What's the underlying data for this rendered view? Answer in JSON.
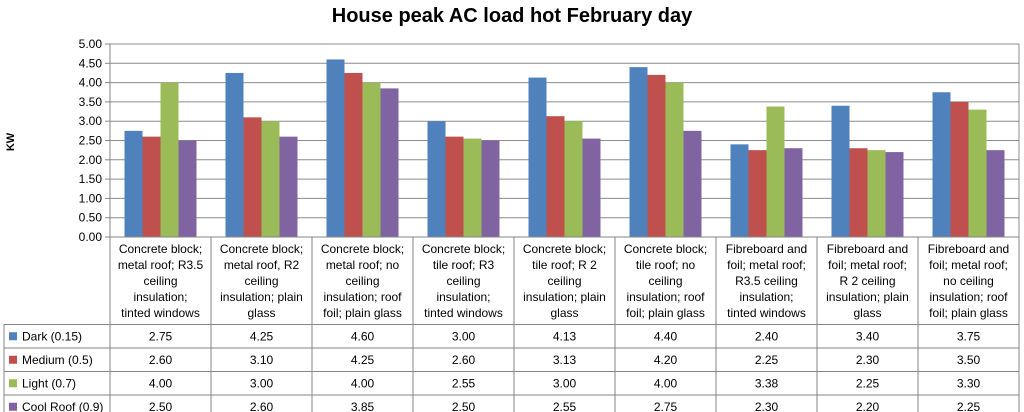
{
  "chart_data": {
    "type": "bar",
    "title": "House peak AC load hot February day",
    "ylabel": "KW",
    "xlabel": "",
    "ylim": [
      0,
      5
    ],
    "ytick_step": 0.5,
    "grid": true,
    "legend": "data-table",
    "categories": [
      [
        "Concrete block;",
        "metal roof; R3.5",
        "ceiling",
        "insulation;",
        "tinted windows"
      ],
      [
        "Concrete block;",
        "metal roof, R2",
        "ceiling",
        "insulation; plain",
        "glass"
      ],
      [
        "Concrete block;",
        "metal roof; no",
        "ceiling",
        "insulation; roof",
        "foil; plain glass"
      ],
      [
        "Concrete block;",
        "tile roof; R3",
        "ceiling",
        "insulation;",
        "tinted windows"
      ],
      [
        "Concrete block;",
        "tile roof; R 2",
        "ceiling",
        "insulation; plain",
        "glass"
      ],
      [
        "Concrete block;",
        "tile roof; no",
        "ceiling",
        "insulation; roof",
        "foil; plain glass"
      ],
      [
        "Fibreboard and",
        "foil; metal roof;",
        "R3.5 ceiling",
        "insulation;",
        "tinted windows"
      ],
      [
        "Fibreboard and",
        "foil; metal roof;",
        "R 2 ceiling",
        "insulation; plain",
        "glass"
      ],
      [
        "Fibreboard and",
        "foil; metal roof;",
        "no ceiling",
        "insulation; roof",
        "foil; plain glass"
      ]
    ],
    "series": [
      {
        "name": "Dark (0.15)",
        "color": "#4F81BD",
        "values": [
          2.75,
          4.25,
          4.6,
          3.0,
          4.13,
          4.4,
          2.4,
          3.4,
          3.75
        ],
        "labels": [
          "2.75",
          "4.25",
          "4.60",
          "3.00",
          "4.13",
          "4.40",
          "2.40",
          "3.40",
          "3.75"
        ]
      },
      {
        "name": "Medium (0.5)",
        "color": "#C0504D",
        "values": [
          2.6,
          3.1,
          4.25,
          2.6,
          3.13,
          4.2,
          2.25,
          2.3,
          3.5
        ],
        "labels": [
          "2.60",
          "3.10",
          "4.25",
          "2.60",
          "3.13",
          "4.20",
          "2.25",
          "2.30",
          "3.50"
        ]
      },
      {
        "name": "Light (0.7)",
        "color": "#9BBB59",
        "values": [
          4.0,
          3.0,
          4.0,
          2.55,
          3.0,
          4.0,
          3.38,
          2.25,
          3.3
        ],
        "labels": [
          "4.00",
          "3.00",
          "4.00",
          "2.55",
          "3.00",
          "4.00",
          "3.38",
          "2.25",
          "3.30"
        ]
      },
      {
        "name": "Cool Roof (0.9)",
        "color": "#8064A2",
        "values": [
          2.5,
          2.6,
          3.85,
          2.5,
          2.55,
          2.75,
          2.3,
          2.2,
          2.25
        ],
        "labels": [
          "2.50",
          "2.60",
          "3.85",
          "2.50",
          "2.55",
          "2.75",
          "2.30",
          "2.20",
          "2.25"
        ]
      }
    ],
    "ytick_labels": [
      "0.00",
      "0.50",
      "1.00",
      "1.50",
      "2.00",
      "2.50",
      "3.00",
      "3.50",
      "4.00",
      "4.50",
      "5.00"
    ]
  }
}
